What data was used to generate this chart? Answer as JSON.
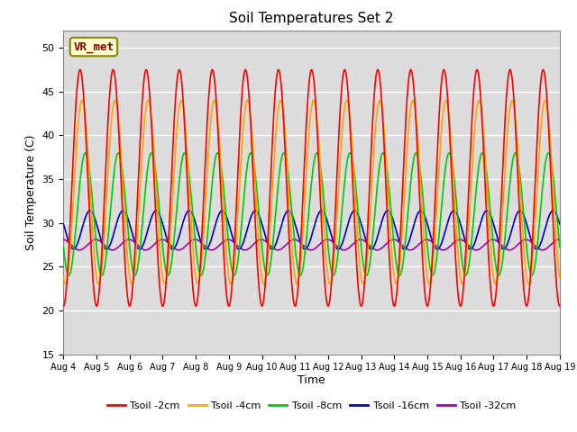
{
  "title": "Soil Temperatures Set 2",
  "xlabel": "Time",
  "ylabel": "Soil Temperature (C)",
  "ylim": [
    15,
    52
  ],
  "yticks": [
    15,
    20,
    25,
    30,
    35,
    40,
    45,
    50
  ],
  "xtick_labels": [
    "Aug 4",
    "Aug 5",
    "Aug 6",
    "Aug 7",
    "Aug 8",
    "Aug 9",
    "Aug 10",
    "Aug 11",
    "Aug 12",
    "Aug 13",
    "Aug 14",
    "Aug 15",
    "Aug 16",
    "Aug 17",
    "Aug 18",
    "Aug 19"
  ],
  "colors": {
    "Tsoil -2cm": "#FF0000",
    "Tsoil -4cm": "#FFA500",
    "Tsoil -8cm": "#00CC00",
    "Tsoil -16cm": "#0000CC",
    "Tsoil -32cm": "#AA00AA"
  },
  "params": {
    "Tsoil -2cm": {
      "mean": 34.0,
      "amp": 13.5,
      "phase": 0.0
    },
    "Tsoil -4cm": {
      "mean": 33.5,
      "amp": 10.5,
      "phase": 0.06
    },
    "Tsoil -8cm": {
      "mean": 31.0,
      "amp": 7.0,
      "phase": 0.16
    },
    "Tsoil -16cm": {
      "mean": 29.2,
      "amp": 2.2,
      "phase": 0.3
    },
    "Tsoil -32cm": {
      "mean": 27.5,
      "amp": 0.6,
      "phase": 0.48
    }
  },
  "plot_bg": "#DCDCDC",
  "fig_bg": "#FFFFFF",
  "grid_color": "#FFFFFF",
  "annotation_text": "VR_met",
  "linewidth": 1.2
}
